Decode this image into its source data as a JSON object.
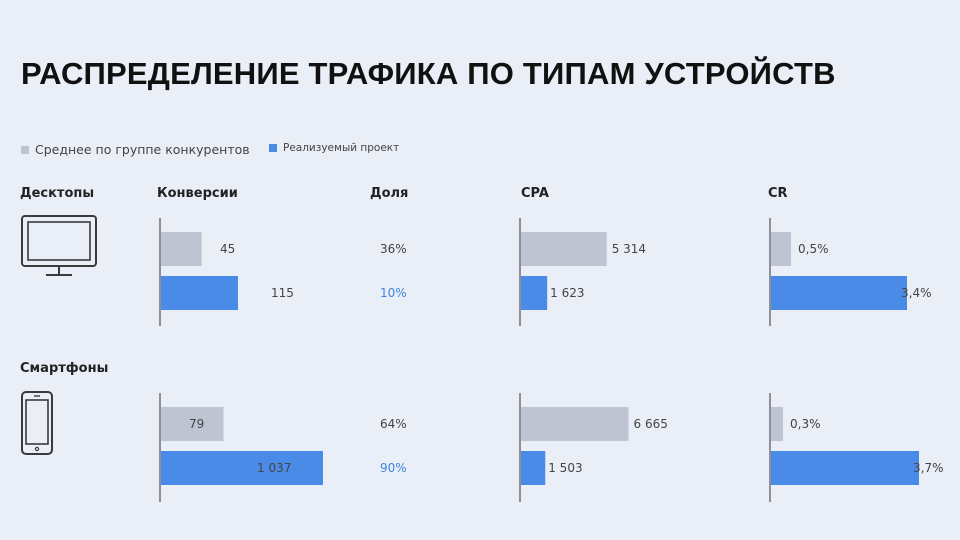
{
  "title": "РАСПРЕДЕЛЕНИЕ ТРАФИКА ПО ТИПАМ УСТРОЙСТВ",
  "legend": {
    "competitors": "Среднее по группе конкурентов",
    "project": "Реализуемый проект"
  },
  "colors": {
    "competitors": "#bfc4d2",
    "project": "#4a8be8",
    "share_project": "#3d86e0",
    "background": "#e9eef7"
  },
  "columns": {
    "conversions": "Конверсии",
    "share": "Доля",
    "cpa": "CPA",
    "cr": "CR"
  },
  "devices": {
    "desktop": {
      "label": "Десктопы",
      "icon": "desktop-monitor-icon"
    },
    "mobile": {
      "label": "Смартфоны",
      "icon": "smartphone-icon"
    }
  },
  "chart_data": {
    "type": "bar",
    "orientation": "horizontal",
    "series": [
      {
        "name": "Среднее по группе конкурентов",
        "key": "competitors"
      },
      {
        "name": "Реализуемый проект",
        "key": "project"
      }
    ],
    "rows": [
      {
        "device": "Десктопы",
        "conversions": {
          "competitors": 45,
          "project": 115,
          "labels": [
            "45",
            "115"
          ]
        },
        "share": {
          "labels": [
            "36%",
            "10%"
          ]
        },
        "cpa": {
          "competitors": 5314,
          "project": 1623,
          "labels": [
            "5 314",
            "1 623"
          ]
        },
        "cr": {
          "competitors": 0.5,
          "project": 3.4,
          "labels": [
            "0,5%",
            "3,4%"
          ]
        }
      },
      {
        "device": "Смартфоны",
        "conversions": {
          "competitors": 79,
          "project": 1037,
          "labels": [
            "79",
            "1 037"
          ]
        },
        "share": {
          "labels": [
            "64%",
            "90%"
          ]
        },
        "cpa": {
          "competitors": 6665,
          "project": 1503,
          "labels": [
            "6 665",
            "1 503"
          ]
        },
        "cr": {
          "competitors": 0.3,
          "project": 3.7,
          "labels": [
            "0,3%",
            "3,7%"
          ]
        }
      }
    ]
  }
}
